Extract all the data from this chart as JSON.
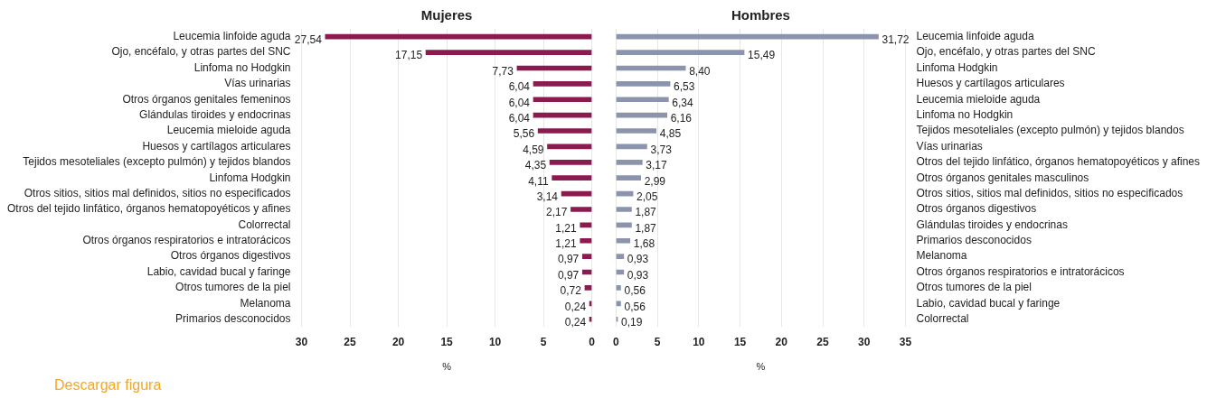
{
  "chart_data": [
    {
      "type": "bar",
      "orientation": "horizontal",
      "title": "Mujeres",
      "xlabel": "%",
      "color": "#8b1a4f",
      "grid": "x",
      "xlim": [
        30,
        0
      ],
      "xticks": [
        30,
        25,
        20,
        15,
        10,
        5,
        0
      ],
      "categories": [
        "Leucemia linfoide aguda",
        "Ojo, encéfalo, y otras partes del SNC",
        "Linfoma no Hodgkin",
        "Vías urinarias",
        "Otros órganos genitales femeninos",
        "Glándulas tiroides y endocrinas",
        "Leucemia mieloide aguda",
        "Huesos y cartílagos articulares",
        "Tejidos mesoteliales (excepto pulmón) y tejidos blandos",
        "Linfoma Hodgkin",
        "Otros sitios, sitios mal definidos, sitios no especificados",
        "Otros del tejido linfático, órganos hematopoyéticos y afines",
        "Colorrectal",
        "Otros órganos respiratorios e intratorácicos",
        "Otros órganos digestivos",
        "Labio, cavidad bucal y faringe",
        "Otros tumores de la piel",
        "Melanoma",
        "Primarios desconocidos"
      ],
      "values": [
        27.54,
        17.15,
        7.73,
        6.04,
        6.04,
        6.04,
        5.56,
        4.59,
        4.35,
        4.11,
        3.14,
        2.17,
        1.21,
        1.21,
        0.97,
        0.97,
        0.72,
        0.24,
        0.24
      ],
      "value_labels": [
        "27,54",
        "17,15",
        "7,73",
        "6,04",
        "6,04",
        "6,04",
        "5,56",
        "4,59",
        "4,35",
        "4,11",
        "3,14",
        "2,17",
        "1,21",
        "1,21",
        "0,97",
        "0,97",
        "0,72",
        "0,24",
        "0,24"
      ],
      "annotations": [
        "Descargar figura"
      ]
    },
    {
      "type": "bar",
      "orientation": "horizontal",
      "title": "Hombres",
      "xlabel": "%",
      "color": "#8c93ad",
      "grid": "x",
      "xlim": [
        0,
        35
      ],
      "xticks": [
        0,
        5,
        10,
        15,
        20,
        25,
        30,
        35
      ],
      "categories": [
        "Leucemia linfoide aguda",
        "Ojo, encéfalo, y otras partes del SNC",
        "Linfoma Hodgkin",
        "Huesos y cartílagos articulares",
        "Leucemia mieloide aguda",
        "Linfoma no Hodgkin",
        "Tejidos mesoteliales (excepto pulmón) y tejidos blandos",
        "Vías urinarias",
        "Otros del tejido linfático, órganos hematopoyéticos y afines",
        "Otros órganos genitales masculinos",
        "Otros sitios, sitios mal definidos, sitios no especificados",
        "Otros órganos digestivos",
        "Glándulas tiroides y endocrinas",
        "Primarios desconocidos",
        "Melanoma",
        "Otros órganos respiratorios e intratorácicos",
        "Otros tumores de la piel",
        "Labio, cavidad bucal y faringe",
        "Colorrectal"
      ],
      "values": [
        31.72,
        15.49,
        8.4,
        6.53,
        6.34,
        6.16,
        4.85,
        3.73,
        3.17,
        2.99,
        2.05,
        1.87,
        1.87,
        1.68,
        0.93,
        0.93,
        0.56,
        0.56,
        0.19
      ],
      "value_labels": [
        "31,72",
        "15,49",
        "8,40",
        "6,53",
        "6,34",
        "6,16",
        "4,85",
        "3,73",
        "3,17",
        "2,99",
        "2,05",
        "1,87",
        "1,87",
        "1,68",
        "0,93",
        "0,93",
        "0,56",
        "0,56",
        "0,19"
      ]
    }
  ]
}
